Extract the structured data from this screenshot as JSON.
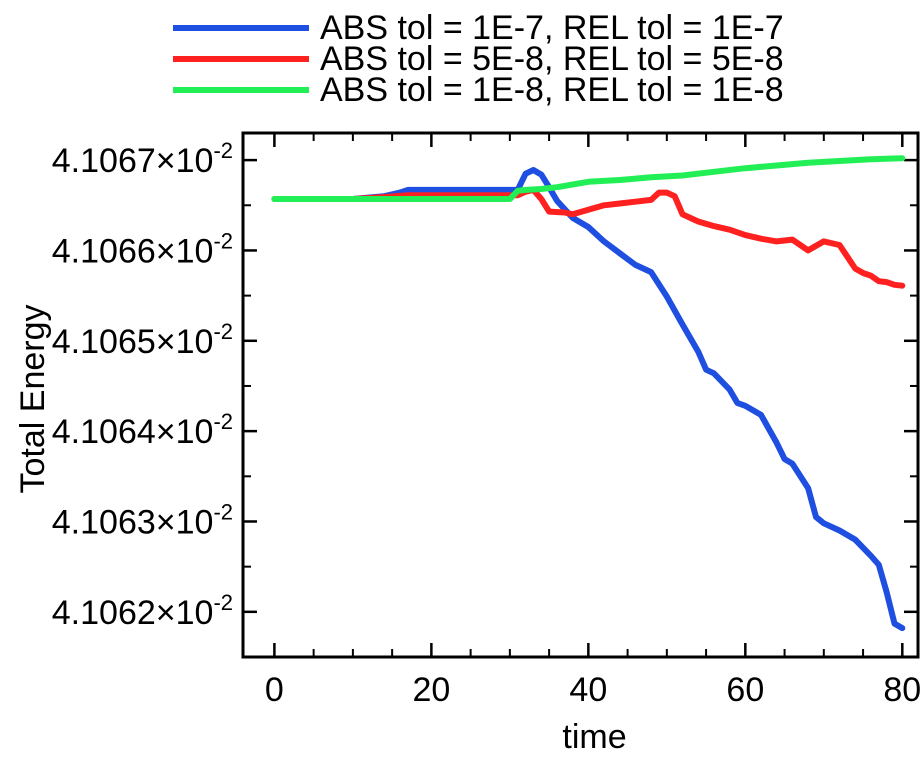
{
  "chart_data": {
    "type": "line",
    "title": "",
    "xlabel": "time",
    "ylabel": "Total Energy",
    "xlim": [
      -4,
      82
    ],
    "ylim": [
      0.0410615,
      0.0410673
    ],
    "xticks": [
      0,
      20,
      40,
      60,
      80
    ],
    "xtick_labels": [
      "0",
      "20",
      "40",
      "60",
      "80"
    ],
    "yticks": [
      {
        "mant": "4.1062",
        "exp": "-2",
        "value": 0.041062
      },
      {
        "mant": "4.1063",
        "exp": "-2",
        "value": 0.041063
      },
      {
        "mant": "4.1064",
        "exp": "-2",
        "value": 0.041064
      },
      {
        "mant": "4.1065",
        "exp": "-2",
        "value": 0.041065
      },
      {
        "mant": "4.1066",
        "exp": "-2",
        "value": 0.041066
      },
      {
        "mant": "4.1067",
        "exp": "-2",
        "value": 0.041067
      }
    ],
    "ytick_times": "x10",
    "grid": false,
    "legend_position": "top, above plot",
    "series": [
      {
        "name": "ABS tol = 1E-7, REL tol = 1E-7",
        "color": "#1f4fe0",
        "x": [
          0,
          10,
          14,
          16,
          17,
          20,
          25,
          29,
          31,
          32,
          33,
          34,
          35,
          36,
          38,
          40,
          42,
          44,
          46,
          48,
          50,
          52,
          54,
          55,
          56,
          58,
          59,
          60,
          62,
          64,
          65,
          66,
          68,
          69,
          70,
          72,
          74,
          76,
          77,
          78,
          79,
          80
        ],
        "y": [
          0.04106657,
          0.04106657,
          0.0410666,
          0.04106664,
          0.04106667,
          0.04106667,
          0.04106667,
          0.04106667,
          0.04106667,
          0.04106685,
          0.04106689,
          0.04106684,
          0.0410667,
          0.04106655,
          0.04106636,
          0.04106626,
          0.0410661,
          0.04106597,
          0.04106584,
          0.04106576,
          0.04106549,
          0.04106518,
          0.04106488,
          0.04106468,
          0.04106464,
          0.04106446,
          0.04106431,
          0.04106428,
          0.04106418,
          0.04106387,
          0.04106369,
          0.04106364,
          0.04106337,
          0.04106305,
          0.04106298,
          0.0410629,
          0.0410628,
          0.04106262,
          0.04106252,
          0.04106222,
          0.04106187,
          0.04106182
        ]
      },
      {
        "name": "ABS tol = 5E-8, REL tol = 5E-8",
        "color": "#ff2020",
        "x": [
          0,
          10,
          14,
          17,
          20,
          25,
          30,
          31,
          32,
          33,
          34,
          35,
          37,
          38,
          40,
          42,
          44,
          46,
          48,
          49,
          50,
          51,
          52,
          54,
          56,
          58,
          60,
          62,
          64,
          66,
          68,
          70,
          72,
          74,
          75,
          76,
          77,
          78,
          79,
          80
        ],
        "y": [
          0.04106657,
          0.04106657,
          0.04106659,
          0.04106661,
          0.04106661,
          0.04106661,
          0.04106661,
          0.04106661,
          0.04106665,
          0.04106667,
          0.04106657,
          0.04106643,
          0.04106642,
          0.0410664,
          0.04106645,
          0.0410665,
          0.04106652,
          0.04106654,
          0.04106656,
          0.04106664,
          0.04106664,
          0.0410666,
          0.0410664,
          0.04106632,
          0.04106627,
          0.04106623,
          0.04106617,
          0.04106613,
          0.0410661,
          0.04106612,
          0.041066,
          0.0410661,
          0.04106606,
          0.0410658,
          0.04106575,
          0.04106572,
          0.04106566,
          0.04106565,
          0.04106562,
          0.04106561
        ]
      },
      {
        "name": "ABS tol = 1E-8, REL tol = 1E-8",
        "color": "#22ee55",
        "x": [
          0,
          10,
          20,
          30,
          31,
          32,
          34,
          36,
          40,
          44,
          48,
          52,
          56,
          60,
          64,
          68,
          72,
          76,
          80
        ],
        "y": [
          0.04106657,
          0.04106657,
          0.04106657,
          0.04106657,
          0.04106666,
          0.04106667,
          0.04106668,
          0.0410667,
          0.04106676,
          0.04106678,
          0.04106681,
          0.04106683,
          0.04106687,
          0.04106691,
          0.04106694,
          0.04106697,
          0.04106699,
          0.04106701,
          0.04106702
        ]
      }
    ]
  }
}
